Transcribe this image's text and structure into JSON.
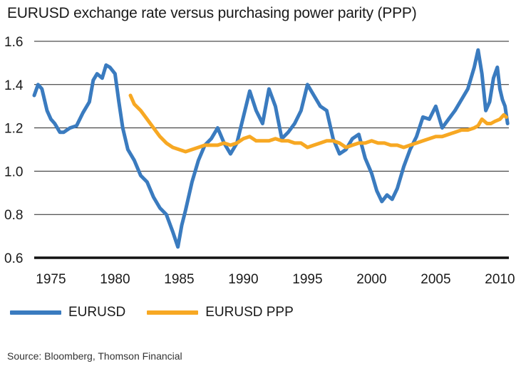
{
  "chart_data": {
    "type": "line",
    "title": "EURUSD exchange rate versus purchasing power parity (PPP)",
    "xlabel": "",
    "ylabel": "",
    "xlim": [
      1973.7,
      2010.7
    ],
    "ylim": [
      0.6,
      1.65
    ],
    "yticks": [
      0.6,
      0.8,
      1.0,
      1.2,
      1.4,
      1.6
    ],
    "ytick_labels": [
      "0.6",
      "0.8",
      "1.0",
      "1.2",
      "1.4",
      "1.6"
    ],
    "xticks": [
      1975,
      1980,
      1985,
      1990,
      1995,
      2000,
      2005,
      2010
    ],
    "xtick_labels": [
      "1975",
      "1980",
      "1985",
      "1990",
      "1995",
      "2000",
      "2005",
      "2010"
    ],
    "grid": true,
    "legend_position": "bottom-left",
    "series": [
      {
        "name": "EURUSD",
        "color": "#3a7bbf",
        "x": [
          1973.7,
          1974.0,
          1974.3,
          1974.7,
          1975.0,
          1975.3,
          1975.7,
          1976.0,
          1976.5,
          1977.0,
          1977.5,
          1978.0,
          1978.3,
          1978.6,
          1979.0,
          1979.3,
          1979.6,
          1980.0,
          1980.3,
          1980.6,
          1981.0,
          1981.5,
          1982.0,
          1982.5,
          1983.0,
          1983.5,
          1984.0,
          1984.5,
          1984.9,
          1985.2,
          1985.5,
          1986.0,
          1986.5,
          1987.0,
          1987.5,
          1988.0,
          1988.5,
          1989.0,
          1989.5,
          1990.0,
          1990.5,
          1991.0,
          1991.5,
          1992.0,
          1992.5,
          1993.0,
          1993.5,
          1994.0,
          1994.5,
          1995.0,
          1995.5,
          1996.0,
          1996.5,
          1997.0,
          1997.5,
          1998.0,
          1998.5,
          1999.0,
          1999.5,
          2000.0,
          2000.4,
          2000.8,
          2001.2,
          2001.6,
          2002.0,
          2002.5,
          2003.0,
          2003.5,
          2004.0,
          2004.5,
          2005.0,
          2005.5,
          2006.0,
          2006.5,
          2007.0,
          2007.5,
          2008.0,
          2008.3,
          2008.6,
          2008.9,
          2009.2,
          2009.5,
          2009.8,
          2010.0,
          2010.2,
          2010.4,
          2010.6
        ],
        "values": [
          1.35,
          1.4,
          1.38,
          1.28,
          1.24,
          1.22,
          1.18,
          1.18,
          1.2,
          1.21,
          1.27,
          1.32,
          1.42,
          1.45,
          1.43,
          1.49,
          1.48,
          1.45,
          1.32,
          1.2,
          1.1,
          1.05,
          0.98,
          0.95,
          0.88,
          0.83,
          0.8,
          0.72,
          0.65,
          0.75,
          0.82,
          0.95,
          1.05,
          1.12,
          1.15,
          1.2,
          1.13,
          1.08,
          1.13,
          1.25,
          1.37,
          1.28,
          1.22,
          1.38,
          1.3,
          1.15,
          1.18,
          1.22,
          1.28,
          1.4,
          1.35,
          1.3,
          1.28,
          1.15,
          1.08,
          1.1,
          1.15,
          1.17,
          1.06,
          0.99,
          0.91,
          0.86,
          0.89,
          0.87,
          0.92,
          1.02,
          1.1,
          1.16,
          1.25,
          1.24,
          1.3,
          1.2,
          1.24,
          1.28,
          1.33,
          1.38,
          1.48,
          1.56,
          1.45,
          1.28,
          1.32,
          1.43,
          1.48,
          1.38,
          1.33,
          1.3,
          1.22
        ]
      },
      {
        "name": "EURUSD PPP",
        "color": "#f7a823",
        "x": [
          1981.2,
          1981.5,
          1982.0,
          1982.5,
          1983.0,
          1983.5,
          1984.0,
          1984.5,
          1985.0,
          1985.5,
          1986.0,
          1986.5,
          1987.0,
          1987.5,
          1988.0,
          1988.5,
          1989.0,
          1989.5,
          1990.0,
          1990.5,
          1991.0,
          1991.5,
          1992.0,
          1992.5,
          1993.0,
          1993.5,
          1994.0,
          1994.5,
          1995.0,
          1995.5,
          1996.0,
          1996.5,
          1997.0,
          1997.5,
          1998.0,
          1998.5,
          1999.0,
          1999.5,
          2000.0,
          2000.5,
          2001.0,
          2001.5,
          2002.0,
          2002.5,
          2003.0,
          2003.5,
          2004.0,
          2004.5,
          2005.0,
          2005.5,
          2006.0,
          2006.5,
          2007.0,
          2007.5,
          2008.0,
          2008.3,
          2008.6,
          2009.0,
          2009.3,
          2009.6,
          2010.0,
          2010.3,
          2010.5
        ],
        "values": [
          1.35,
          1.31,
          1.28,
          1.24,
          1.2,
          1.16,
          1.13,
          1.11,
          1.1,
          1.09,
          1.1,
          1.11,
          1.12,
          1.12,
          1.12,
          1.13,
          1.12,
          1.13,
          1.15,
          1.16,
          1.14,
          1.14,
          1.14,
          1.15,
          1.14,
          1.14,
          1.13,
          1.13,
          1.11,
          1.12,
          1.13,
          1.14,
          1.14,
          1.13,
          1.11,
          1.12,
          1.13,
          1.13,
          1.14,
          1.13,
          1.13,
          1.12,
          1.12,
          1.11,
          1.12,
          1.13,
          1.14,
          1.15,
          1.16,
          1.16,
          1.17,
          1.18,
          1.19,
          1.19,
          1.2,
          1.21,
          1.24,
          1.22,
          1.22,
          1.23,
          1.24,
          1.26,
          1.25
        ]
      }
    ]
  },
  "legend": {
    "items": [
      {
        "label": "EURUSD",
        "color": "#3a7bbf"
      },
      {
        "label": "EURUSD PPP",
        "color": "#f7a823"
      }
    ]
  },
  "source": "Source: Bloomberg, Thomson Financial"
}
